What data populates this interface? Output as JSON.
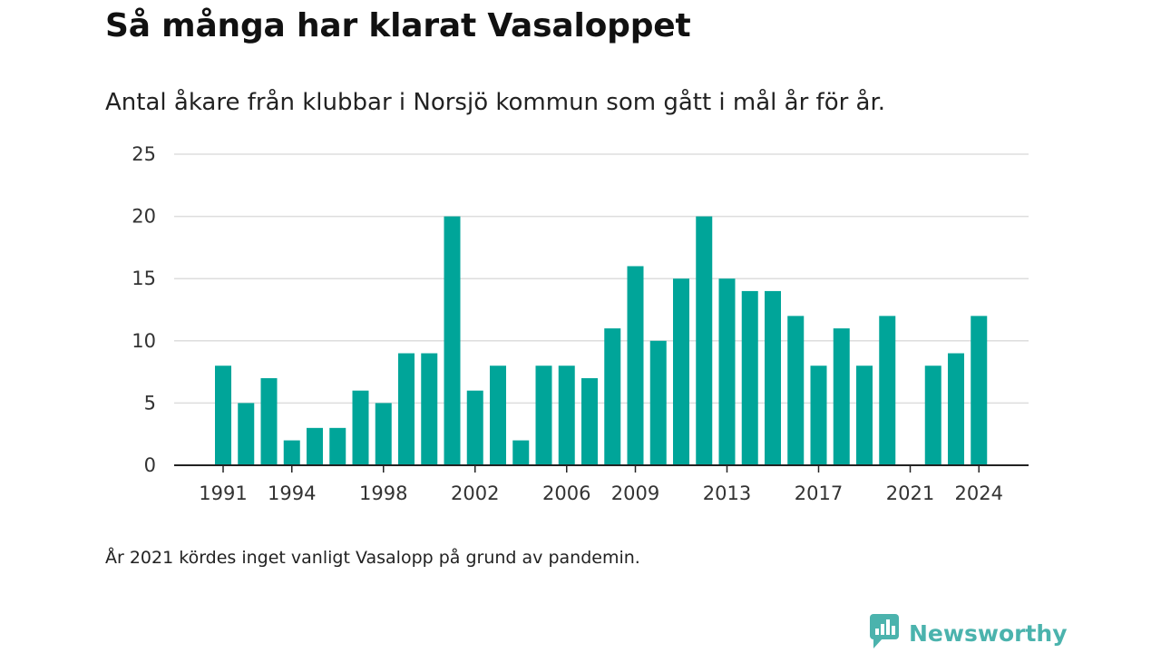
{
  "title": "Så många har klarat Vasaloppet",
  "subtitle": "Antal åkare från klubbar i Norsjö kommun som gått i mål år för år.",
  "footnote": "År 2021 kördes inget vanligt Vasalopp på grund av pandemin.",
  "brand": {
    "name": "Newsworthy",
    "icon": "newsworthy-logo-icon",
    "color": "#4bb3ad"
  },
  "colors": {
    "bar": "#00a599",
    "grid": "#dddddd",
    "axis": "#222222"
  },
  "chart_data": {
    "type": "bar",
    "categories": [
      "1991",
      "1992",
      "1993",
      "1994",
      "1995",
      "1996",
      "1997",
      "1998",
      "1999",
      "2000",
      "2001",
      "2002",
      "2003",
      "2004",
      "2005",
      "2006",
      "2007",
      "2008",
      "2009",
      "2010",
      "2011",
      "2012",
      "2013",
      "2014",
      "2015",
      "2016",
      "2017",
      "2018",
      "2019",
      "2020",
      "2021",
      "2022",
      "2023",
      "2024"
    ],
    "values": [
      8,
      5,
      7,
      2,
      3,
      3,
      6,
      5,
      9,
      9,
      20,
      6,
      8,
      2,
      8,
      8,
      7,
      11,
      16,
      10,
      15,
      20,
      15,
      14,
      14,
      12,
      8,
      11,
      8,
      12,
      null,
      8,
      9,
      12
    ],
    "xtick_labels": [
      "1991",
      "1994",
      "1998",
      "2002",
      "2006",
      "2009",
      "2013",
      "2017",
      "2021",
      "2024"
    ],
    "yticks": [
      0,
      5,
      10,
      15,
      20,
      25
    ],
    "ylim": [
      0,
      25
    ],
    "xlabel": "",
    "ylabel": "",
    "grid": true,
    "legend": false
  }
}
